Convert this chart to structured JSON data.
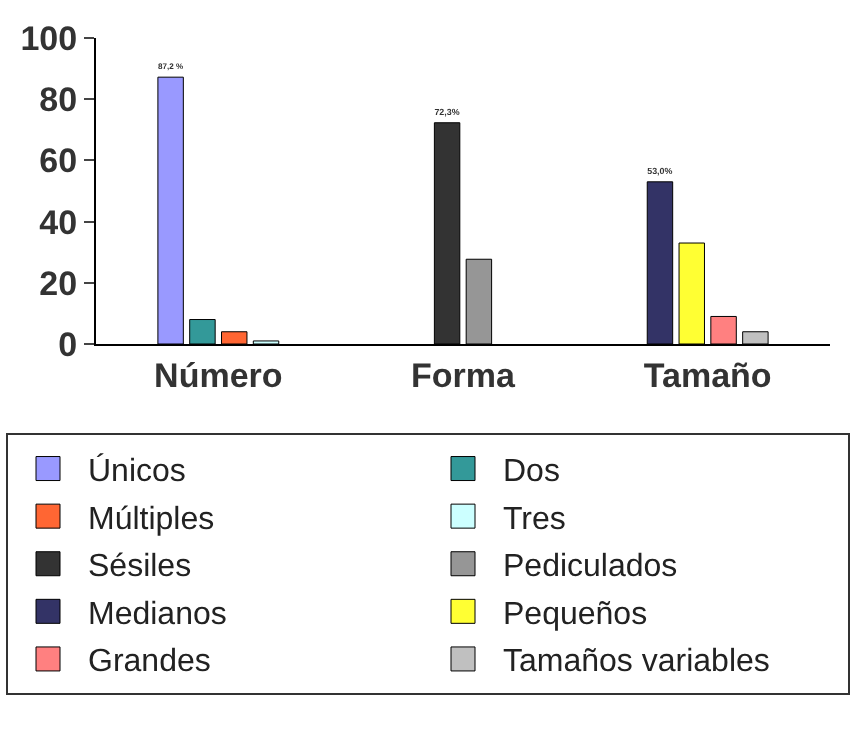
{
  "chart_data": {
    "type": "bar",
    "categories": [
      "Número",
      "Forma",
      "Tamaño"
    ],
    "series": [
      {
        "name": "Únicos",
        "color": "#9999ff",
        "values": [
          87.2,
          null,
          null
        ],
        "value_labels": [
          "87,2 %",
          null,
          null
        ]
      },
      {
        "name": "Dos",
        "color": "#339999",
        "values": [
          8,
          null,
          null
        ]
      },
      {
        "name": "Múltiples",
        "color": "#ff6633",
        "values": [
          4,
          null,
          null
        ]
      },
      {
        "name": "Tres",
        "color": "#ccffff",
        "values": [
          1,
          null,
          null
        ]
      },
      {
        "name": "Sésiles",
        "color": "#333333",
        "values": [
          null,
          72.3,
          null
        ],
        "value_labels": [
          null,
          "72,3%",
          null
        ]
      },
      {
        "name": "Pediculados",
        "color": "#969696",
        "values": [
          null,
          27.7,
          null
        ]
      },
      {
        "name": "Medianos",
        "color": "#333366",
        "values": [
          null,
          null,
          53.0
        ],
        "value_labels": [
          null,
          null,
          "53,0%"
        ]
      },
      {
        "name": "Pequeños",
        "color": "#ffff33",
        "values": [
          null,
          null,
          33
        ]
      },
      {
        "name": "Grandes",
        "color": "#ff8080",
        "values": [
          null,
          null,
          9
        ]
      },
      {
        "name": "Tamaños variables",
        "color": "#c0c0c0",
        "values": [
          null,
          null,
          4
        ]
      }
    ],
    "ylim": [
      0,
      100
    ],
    "yticks": [
      0,
      20,
      40,
      60,
      80,
      100
    ],
    "legend": "bottom"
  }
}
